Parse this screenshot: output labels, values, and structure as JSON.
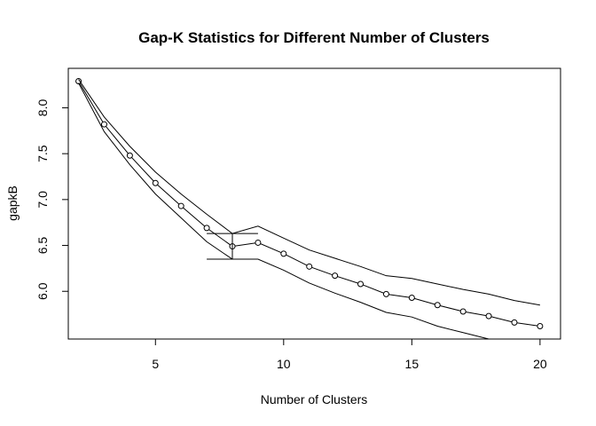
{
  "chart_data": {
    "type": "line",
    "title": "Gap-K Statistics for Different Number of Clusters",
    "xlabel": "Number of Clusters",
    "ylabel": "gapkB",
    "xlim": [
      1.6,
      20.8
    ],
    "ylim": [
      5.48,
      8.43
    ],
    "x_ticks": [
      5,
      10,
      15,
      20
    ],
    "y_ticks": [
      6.0,
      6.5,
      7.0,
      7.5,
      8.0
    ],
    "x_tick_labels": [
      "5",
      "10",
      "15",
      "20"
    ],
    "y_tick_labels": [
      "6.0",
      "6.5",
      "7.0",
      "7.5",
      "8.0"
    ],
    "grid": false,
    "legend": "none",
    "x": [
      2,
      3,
      4,
      5,
      6,
      7,
      8,
      9,
      10,
      11,
      12,
      13,
      14,
      15,
      16,
      17,
      18,
      19,
      20
    ],
    "series": [
      {
        "role": "gap",
        "markers": true,
        "values": [
          8.29,
          7.82,
          7.48,
          7.18,
          6.93,
          6.69,
          6.49,
          6.53,
          6.41,
          6.27,
          6.17,
          6.08,
          5.97,
          5.93,
          5.85,
          5.78,
          5.73,
          5.66,
          5.62
        ]
      },
      {
        "role": "upper-bound",
        "markers": false,
        "values": [
          8.31,
          7.9,
          7.58,
          7.3,
          7.06,
          6.84,
          6.63,
          6.71,
          6.58,
          6.45,
          6.36,
          6.27,
          6.17,
          6.14,
          6.08,
          6.02,
          5.97,
          5.9,
          5.85
        ]
      },
      {
        "role": "lower-bound",
        "markers": false,
        "values": [
          8.27,
          7.74,
          7.38,
          7.06,
          6.8,
          6.54,
          6.35,
          6.35,
          6.23,
          6.09,
          5.98,
          5.88,
          5.77,
          5.72,
          5.62,
          5.55,
          5.48,
          5.42,
          5.39
        ]
      }
    ],
    "annotations": [
      {
        "type": "horizontal-segment",
        "x_from": 7,
        "x_to": 9,
        "y": 6.63
      },
      {
        "type": "horizontal-segment",
        "x_from": 7,
        "x_to": 9,
        "y": 6.35
      },
      {
        "type": "vertical-segment",
        "x": 8,
        "y_from": 6.35,
        "y_to": 6.63
      }
    ],
    "colors": {
      "line": "#000000",
      "background": "#ffffff"
    }
  }
}
